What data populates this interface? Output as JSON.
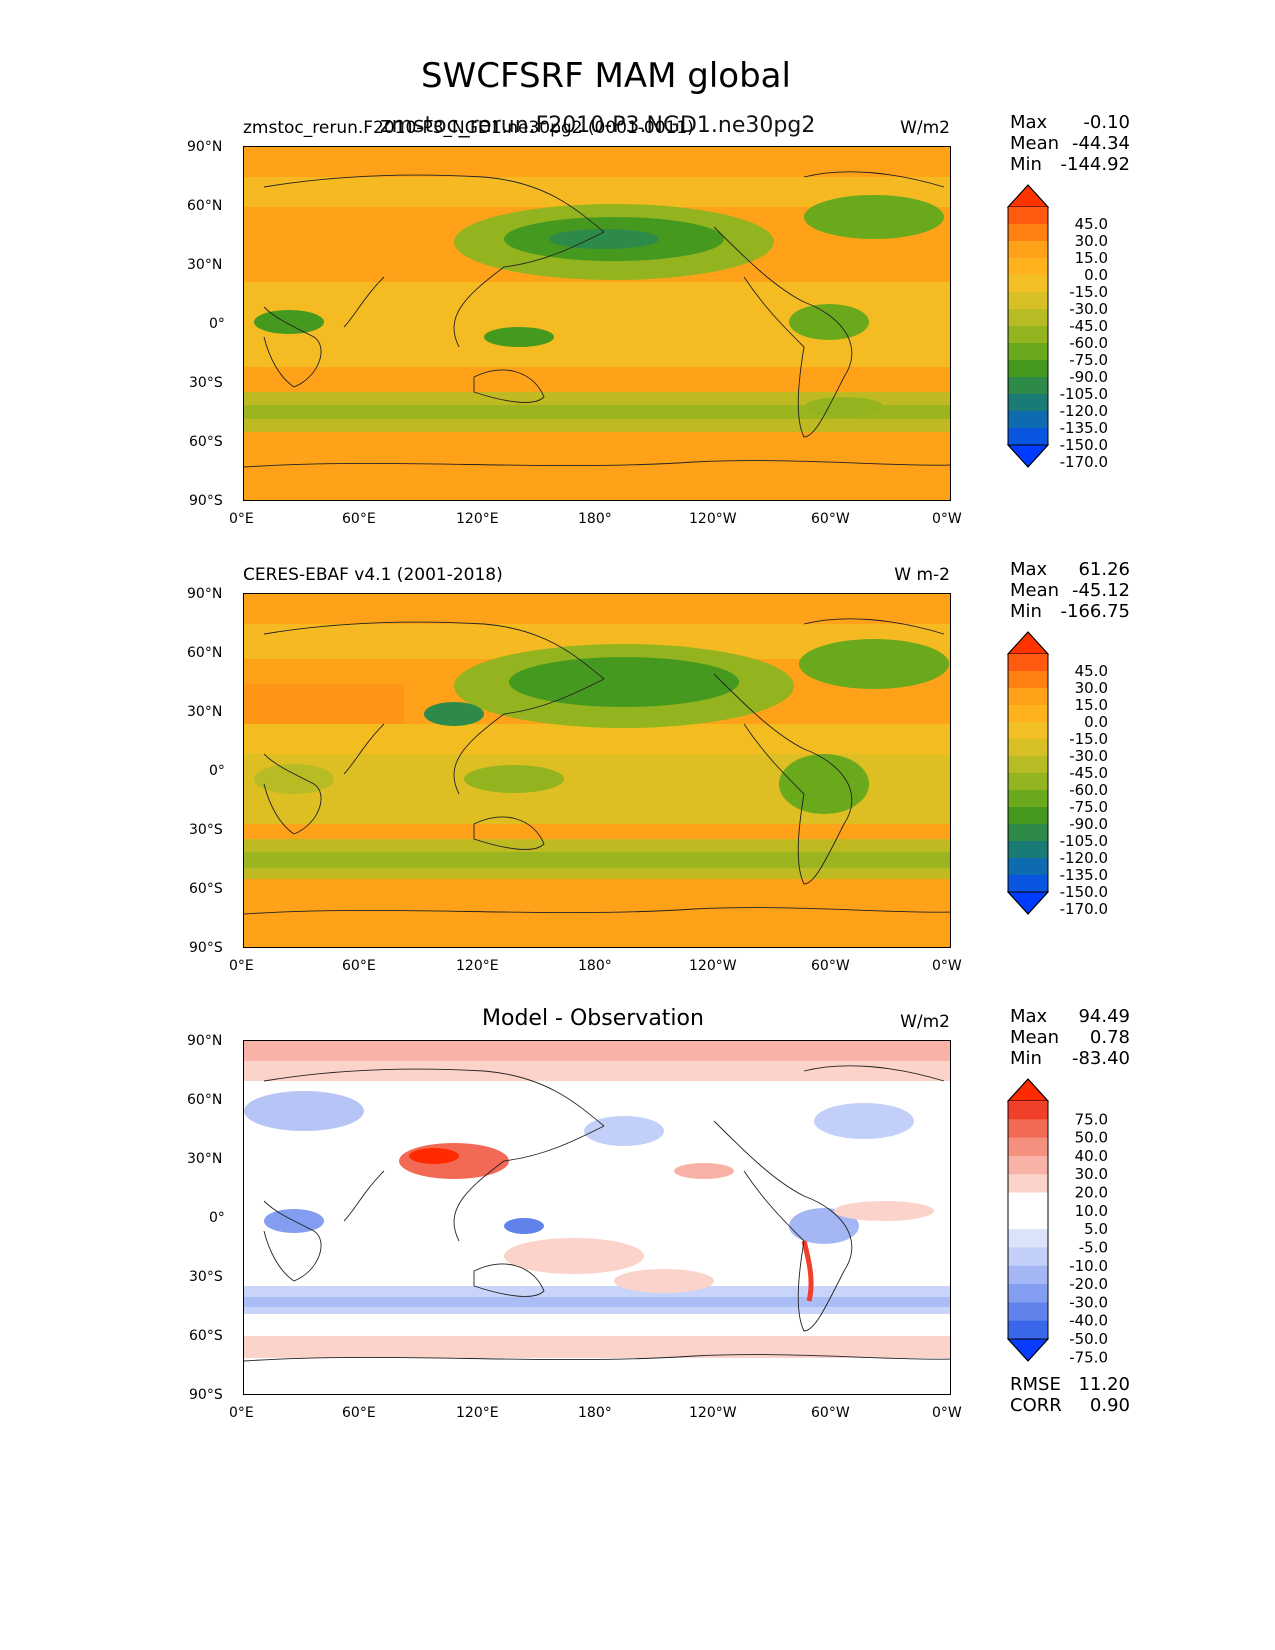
{
  "figure": {
    "title": "SWCFSRF MAM global"
  },
  "panels": [
    {
      "id": "model",
      "left_title": "zmstoc_rerun.F2010-P3_NGD1.ne30pg2 (0001-0011)",
      "center_title": "zmstoc_rerun.F2010-P3.NGD1.ne30pg2",
      "units": "W/m2",
      "stats": {
        "max_label": "Max",
        "max": "-0.10",
        "mean_label": "Mean",
        "mean": "-44.34",
        "min_label": "Min",
        "min": "-144.92"
      },
      "colorbar": {
        "levels": [
          "45.0",
          "30.0",
          "15.0",
          "0.0",
          "-15.0",
          "-30.0",
          "-45.0",
          "-60.0",
          "-75.0",
          "-90.0",
          "-105.0",
          "-120.0",
          "-135.0",
          "-150.0",
          "-170.0"
        ],
        "colors": [
          "#ff3300",
          "#ff5a0f",
          "#ff7f10",
          "#ffa21a",
          "#ffb21c",
          "#f2c024",
          "#d6c025",
          "#b8bc24",
          "#93b41f",
          "#6aa81c",
          "#46991f",
          "#2d8a48",
          "#1a7b76",
          "#0f6bb0",
          "#0a55e0",
          "#003cff"
        ]
      }
    },
    {
      "id": "obs",
      "left_title": "CERES-EBAF v4.1 (2001-2018)",
      "units": "W m-2",
      "stats": {
        "max_label": "Max",
        "max": "61.26",
        "mean_label": "Mean",
        "mean": "-45.12",
        "min_label": "Min",
        "min": "-166.75"
      },
      "colorbar": {
        "levels": [
          "45.0",
          "30.0",
          "15.0",
          "0.0",
          "-15.0",
          "-30.0",
          "-45.0",
          "-60.0",
          "-75.0",
          "-90.0",
          "-105.0",
          "-120.0",
          "-135.0",
          "-150.0",
          "-170.0"
        ],
        "colors": [
          "#ff3300",
          "#ff5a0f",
          "#ff7f10",
          "#ffa21a",
          "#ffb21c",
          "#f2c024",
          "#d6c025",
          "#b8bc24",
          "#93b41f",
          "#6aa81c",
          "#46991f",
          "#2d8a48",
          "#1a7b76",
          "#0f6bb0",
          "#0a55e0",
          "#003cff"
        ]
      }
    },
    {
      "id": "diff",
      "center_title": "Model - Observation",
      "units": "W/m2",
      "stats": {
        "max_label": "Max",
        "max": "94.49",
        "mean_label": "Mean",
        "mean": "0.78",
        "min_label": "Min",
        "min": "-83.40"
      },
      "colorbar": {
        "levels": [
          "75.0",
          "50.0",
          "40.0",
          "30.0",
          "20.0",
          "10.0",
          "5.0",
          "-5.0",
          "-10.0",
          "-20.0",
          "-30.0",
          "-40.0",
          "-50.0",
          "-75.0"
        ],
        "colors": [
          "#ff2a00",
          "#f0402a",
          "#f26a55",
          "#f58f7e",
          "#f8b3a6",
          "#fbd3ca",
          "#ffffff",
          "#ffffff",
          "#dbe3fb",
          "#c2cff8",
          "#a4b7f4",
          "#839ef0",
          "#5f83eb",
          "#3a67ea",
          "#0a3cff"
        ]
      },
      "metrics": {
        "rmse_label": "RMSE",
        "rmse": "11.20",
        "corr_label": "CORR",
        "corr": "0.90"
      }
    }
  ],
  "axes": {
    "y_ticks": [
      "90°N",
      "60°N",
      "30°N",
      "0°",
      "30°S",
      "60°S",
      "90°S"
    ],
    "x_ticks": [
      "0°E",
      "60°E",
      "120°E",
      "180°",
      "120°W",
      "60°W",
      "0°W"
    ]
  }
}
